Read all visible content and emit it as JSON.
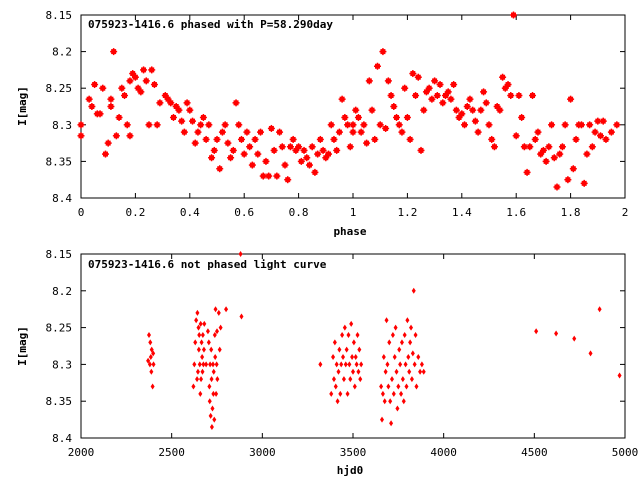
{
  "colors": {
    "marker": "#ff0000",
    "axis": "#000000",
    "background": "#ffffff"
  },
  "chart_data": [
    {
      "type": "scatter",
      "marker": "star",
      "title": "075923-1416.6 phased with P=58.290day",
      "xlabel": "phase",
      "ylabel": "I[mag]",
      "xlim": [
        0,
        2
      ],
      "ylim": [
        8.15,
        8.4
      ],
      "y_inverted": true,
      "grid": false,
      "xticks": [
        0,
        0.2,
        0.4,
        0.6,
        0.8,
        1,
        1.2,
        1.4,
        1.6,
        1.8,
        2
      ],
      "xtick_labels": [
        "0",
        "0.2",
        "0.4",
        "0.6",
        "0.8",
        "1",
        "1.2",
        "1.4",
        "1.6",
        "1.8",
        "2"
      ],
      "yticks": [
        8.15,
        8.2,
        8.25,
        8.3,
        8.35,
        8.4
      ],
      "ytick_labels": [
        "8.15",
        "8.2",
        "8.25",
        "8.3",
        "8.35",
        "8.4"
      ],
      "points": [
        [
          0.0,
          8.3
        ],
        [
          0.0,
          8.315
        ],
        [
          0.03,
          8.265
        ],
        [
          0.04,
          8.275
        ],
        [
          0.05,
          8.245
        ],
        [
          0.06,
          8.285
        ],
        [
          0.07,
          8.285
        ],
        [
          0.08,
          8.25
        ],
        [
          0.09,
          8.34
        ],
        [
          0.1,
          8.325
        ],
        [
          0.11,
          8.265
        ],
        [
          0.11,
          8.275
        ],
        [
          0.12,
          8.2
        ],
        [
          0.13,
          8.315
        ],
        [
          0.14,
          8.29
        ],
        [
          0.15,
          8.25
        ],
        [
          0.16,
          8.26
        ],
        [
          0.17,
          8.3
        ],
        [
          0.18,
          8.24
        ],
        [
          0.18,
          8.315
        ],
        [
          0.19,
          8.23
        ],
        [
          0.2,
          8.235
        ],
        [
          0.21,
          8.25
        ],
        [
          0.22,
          8.255
        ],
        [
          0.23,
          8.225
        ],
        [
          0.24,
          8.24
        ],
        [
          0.25,
          8.3
        ],
        [
          0.26,
          8.225
        ],
        [
          0.27,
          8.245
        ],
        [
          0.28,
          8.3
        ],
        [
          0.29,
          8.27
        ],
        [
          0.31,
          8.26
        ],
        [
          0.32,
          8.265
        ],
        [
          0.33,
          8.27
        ],
        [
          0.34,
          8.29
        ],
        [
          0.35,
          8.275
        ],
        [
          0.36,
          8.28
        ],
        [
          0.37,
          8.295
        ],
        [
          0.38,
          8.31
        ],
        [
          0.39,
          8.27
        ],
        [
          0.4,
          8.28
        ],
        [
          0.41,
          8.295
        ],
        [
          0.42,
          8.325
        ],
        [
          0.43,
          8.31
        ],
        [
          0.44,
          8.3
        ],
        [
          0.45,
          8.29
        ],
        [
          0.46,
          8.32
        ],
        [
          0.47,
          8.3
        ],
        [
          0.48,
          8.345
        ],
        [
          0.49,
          8.335
        ],
        [
          0.5,
          8.32
        ],
        [
          0.51,
          8.36
        ],
        [
          0.52,
          8.31
        ],
        [
          0.53,
          8.3
        ],
        [
          0.54,
          8.325
        ],
        [
          0.55,
          8.345
        ],
        [
          0.56,
          8.335
        ],
        [
          0.57,
          8.27
        ],
        [
          0.58,
          8.3
        ],
        [
          0.59,
          8.32
        ],
        [
          0.6,
          8.34
        ],
        [
          0.61,
          8.31
        ],
        [
          0.62,
          8.33
        ],
        [
          0.63,
          8.355
        ],
        [
          0.64,
          8.32
        ],
        [
          0.65,
          8.34
        ],
        [
          0.66,
          8.31
        ],
        [
          0.67,
          8.37
        ],
        [
          0.68,
          8.35
        ],
        [
          0.69,
          8.37
        ],
        [
          0.7,
          8.305
        ],
        [
          0.71,
          8.335
        ],
        [
          0.72,
          8.37
        ],
        [
          0.73,
          8.31
        ],
        [
          0.74,
          8.33
        ],
        [
          0.75,
          8.355
        ],
        [
          0.76,
          8.375
        ],
        [
          0.77,
          8.33
        ],
        [
          0.78,
          8.32
        ],
        [
          0.79,
          8.335
        ],
        [
          0.8,
          8.33
        ],
        [
          0.81,
          8.35
        ],
        [
          0.82,
          8.335
        ],
        [
          0.83,
          8.345
        ],
        [
          0.84,
          8.355
        ],
        [
          0.85,
          8.33
        ],
        [
          0.86,
          8.365
        ],
        [
          0.87,
          8.34
        ],
        [
          0.88,
          8.32
        ],
        [
          0.89,
          8.335
        ],
        [
          0.9,
          8.345
        ],
        [
          0.91,
          8.34
        ],
        [
          0.92,
          8.3
        ],
        [
          0.93,
          8.32
        ],
        [
          0.94,
          8.335
        ],
        [
          0.95,
          8.31
        ],
        [
          0.96,
          8.265
        ],
        [
          0.97,
          8.29
        ],
        [
          0.98,
          8.3
        ],
        [
          0.99,
          8.33
        ],
        [
          1.0,
          8.3
        ],
        [
          1.0,
          8.31
        ],
        [
          1.01,
          8.28
        ],
        [
          1.02,
          8.29
        ],
        [
          1.03,
          8.31
        ],
        [
          1.04,
          8.3
        ],
        [
          1.05,
          8.325
        ],
        [
          1.06,
          8.24
        ],
        [
          1.07,
          8.28
        ],
        [
          1.08,
          8.32
        ],
        [
          1.09,
          8.22
        ],
        [
          1.1,
          8.3
        ],
        [
          1.11,
          8.2
        ],
        [
          1.12,
          8.305
        ],
        [
          1.13,
          8.24
        ],
        [
          1.14,
          8.26
        ],
        [
          1.15,
          8.275
        ],
        [
          1.16,
          8.29
        ],
        [
          1.17,
          8.3
        ],
        [
          1.18,
          8.31
        ],
        [
          1.19,
          8.25
        ],
        [
          1.2,
          8.29
        ],
        [
          1.21,
          8.32
        ],
        [
          1.22,
          8.23
        ],
        [
          1.23,
          8.26
        ],
        [
          1.24,
          8.235
        ],
        [
          1.25,
          8.335
        ],
        [
          1.26,
          8.28
        ],
        [
          1.27,
          8.255
        ],
        [
          1.28,
          8.25
        ],
        [
          1.29,
          8.265
        ],
        [
          1.3,
          8.24
        ],
        [
          1.31,
          8.26
        ],
        [
          1.32,
          8.245
        ],
        [
          1.33,
          8.27
        ],
        [
          1.34,
          8.26
        ],
        [
          1.35,
          8.255
        ],
        [
          1.36,
          8.265
        ],
        [
          1.37,
          8.245
        ],
        [
          1.38,
          8.28
        ],
        [
          1.39,
          8.29
        ],
        [
          1.4,
          8.285
        ],
        [
          1.41,
          8.3
        ],
        [
          1.42,
          8.275
        ],
        [
          1.43,
          8.265
        ],
        [
          1.44,
          8.28
        ],
        [
          1.45,
          8.295
        ],
        [
          1.46,
          8.31
        ],
        [
          1.47,
          8.28
        ],
        [
          1.48,
          8.255
        ],
        [
          1.49,
          8.27
        ],
        [
          1.5,
          8.3
        ],
        [
          1.51,
          8.32
        ],
        [
          1.52,
          8.33
        ],
        [
          1.53,
          8.275
        ],
        [
          1.54,
          8.28
        ],
        [
          1.55,
          8.235
        ],
        [
          1.56,
          8.25
        ],
        [
          1.57,
          8.245
        ],
        [
          1.58,
          8.26
        ],
        [
          1.59,
          8.15
        ],
        [
          1.6,
          8.315
        ],
        [
          1.61,
          8.26
        ],
        [
          1.62,
          8.29
        ],
        [
          1.63,
          8.33
        ],
        [
          1.64,
          8.365
        ],
        [
          1.65,
          8.33
        ],
        [
          1.66,
          8.26
        ],
        [
          1.67,
          8.32
        ],
        [
          1.68,
          8.31
        ],
        [
          1.69,
          8.34
        ],
        [
          1.7,
          8.335
        ],
        [
          1.71,
          8.35
        ],
        [
          1.72,
          8.33
        ],
        [
          1.73,
          8.3
        ],
        [
          1.74,
          8.345
        ],
        [
          1.75,
          8.385
        ],
        [
          1.76,
          8.34
        ],
        [
          1.77,
          8.33
        ],
        [
          1.78,
          8.3
        ],
        [
          1.79,
          8.375
        ],
        [
          1.8,
          8.265
        ],
        [
          1.81,
          8.36
        ],
        [
          1.82,
          8.32
        ],
        [
          1.83,
          8.3
        ],
        [
          1.84,
          8.3
        ],
        [
          1.85,
          8.38
        ],
        [
          1.86,
          8.34
        ],
        [
          1.87,
          8.3
        ],
        [
          1.88,
          8.33
        ],
        [
          1.89,
          8.31
        ],
        [
          1.9,
          8.295
        ],
        [
          1.91,
          8.315
        ],
        [
          1.92,
          8.295
        ],
        [
          1.93,
          8.32
        ],
        [
          1.95,
          8.31
        ],
        [
          1.97,
          8.3
        ]
      ]
    },
    {
      "type": "scatter",
      "marker": "diamond",
      "title": "075923-1416.6 not phased light curve",
      "xlabel": "hjd0",
      "ylabel": "I[mag]",
      "xlim": [
        2000,
        5000
      ],
      "ylim": [
        8.15,
        8.4
      ],
      "y_inverted": true,
      "grid": false,
      "xticks": [
        2000,
        2500,
        3000,
        3500,
        4000,
        4500,
        5000
      ],
      "xtick_labels": [
        "2000",
        "2500",
        "3000",
        "3500",
        "4000",
        "4500",
        "5000"
      ],
      "yticks": [
        8.15,
        8.2,
        8.25,
        8.3,
        8.35,
        8.4
      ],
      "ytick_labels": [
        "8.15",
        "8.2",
        "8.25",
        "8.3",
        "8.35",
        "8.4"
      ],
      "points": [
        [
          2370,
          8.295
        ],
        [
          2375,
          8.26
        ],
        [
          2380,
          8.3
        ],
        [
          2382,
          8.27
        ],
        [
          2385,
          8.29
        ],
        [
          2388,
          8.31
        ],
        [
          2390,
          8.28
        ],
        [
          2395,
          8.33
        ],
        [
          2398,
          8.285
        ],
        [
          2400,
          8.3
        ],
        [
          2620,
          8.33
        ],
        [
          2625,
          8.3
        ],
        [
          2630,
          8.27
        ],
        [
          2635,
          8.24
        ],
        [
          2640,
          8.32
        ],
        [
          2642,
          8.23
        ],
        [
          2645,
          8.31
        ],
        [
          2648,
          8.25
        ],
        [
          2650,
          8.28
        ],
        [
          2652,
          8.26
        ],
        [
          2655,
          8.3
        ],
        [
          2658,
          8.34
        ],
        [
          2660,
          8.245
        ],
        [
          2662,
          8.32
        ],
        [
          2665,
          8.27
        ],
        [
          2668,
          8.29
        ],
        [
          2670,
          8.31
        ],
        [
          2672,
          8.26
        ],
        [
          2675,
          8.3
        ],
        [
          2678,
          8.28
        ],
        [
          2680,
          8.245
        ],
        [
          2690,
          8.3
        ],
        [
          2700,
          8.255
        ],
        [
          2705,
          8.27
        ],
        [
          2708,
          8.33
        ],
        [
          2710,
          8.35
        ],
        [
          2712,
          8.3
        ],
        [
          2715,
          8.37
        ],
        [
          2718,
          8.28
        ],
        [
          2720,
          8.32
        ],
        [
          2722,
          8.385
        ],
        [
          2725,
          8.36
        ],
        [
          2728,
          8.3
        ],
        [
          2730,
          8.34
        ],
        [
          2732,
          8.31
        ],
        [
          2735,
          8.375
        ],
        [
          2738,
          8.26
        ],
        [
          2740,
          8.29
        ],
        [
          2742,
          8.225
        ],
        [
          2745,
          8.34
        ],
        [
          2748,
          8.3
        ],
        [
          2750,
          8.255
        ],
        [
          2752,
          8.32
        ],
        [
          2760,
          8.23
        ],
        [
          2765,
          8.28
        ],
        [
          2770,
          8.25
        ],
        [
          2800,
          8.225
        ],
        [
          2880,
          8.15
        ],
        [
          2885,
          8.235
        ],
        [
          3320,
          8.3
        ],
        [
          3380,
          8.34
        ],
        [
          3390,
          8.29
        ],
        [
          3395,
          8.32
        ],
        [
          3400,
          8.27
        ],
        [
          3405,
          8.33
        ],
        [
          3410,
          8.3
        ],
        [
          3415,
          8.35
        ],
        [
          3420,
          8.31
        ],
        [
          3425,
          8.28
        ],
        [
          3430,
          8.34
        ],
        [
          3435,
          8.3
        ],
        [
          3440,
          8.26
        ],
        [
          3445,
          8.29
        ],
        [
          3450,
          8.32
        ],
        [
          3455,
          8.25
        ],
        [
          3460,
          8.3
        ],
        [
          3465,
          8.28
        ],
        [
          3470,
          8.34
        ],
        [
          3475,
          8.26
        ],
        [
          3480,
          8.3
        ],
        [
          3485,
          8.32
        ],
        [
          3490,
          8.245
        ],
        [
          3495,
          8.29
        ],
        [
          3500,
          8.31
        ],
        [
          3505,
          8.27
        ],
        [
          3510,
          8.33
        ],
        [
          3515,
          8.29
        ],
        [
          3520,
          8.3
        ],
        [
          3525,
          8.26
        ],
        [
          3530,
          8.31
        ],
        [
          3535,
          8.28
        ],
        [
          3540,
          8.32
        ],
        [
          3545,
          8.3
        ],
        [
          3655,
          8.33
        ],
        [
          3660,
          8.375
        ],
        [
          3665,
          8.34
        ],
        [
          3670,
          8.29
        ],
        [
          3675,
          8.35
        ],
        [
          3680,
          8.31
        ],
        [
          3685,
          8.24
        ],
        [
          3690,
          8.3
        ],
        [
          3695,
          8.33
        ],
        [
          3700,
          8.27
        ],
        [
          3705,
          8.35
        ],
        [
          3710,
          8.38
        ],
        [
          3715,
          8.32
        ],
        [
          3720,
          8.26
        ],
        [
          3725,
          8.34
        ],
        [
          3730,
          8.29
        ],
        [
          3735,
          8.25
        ],
        [
          3740,
          8.31
        ],
        [
          3745,
          8.36
        ],
        [
          3750,
          8.33
        ],
        [
          3755,
          8.28
        ],
        [
          3760,
          8.3
        ],
        [
          3765,
          8.34
        ],
        [
          3770,
          8.27
        ],
        [
          3775,
          8.32
        ],
        [
          3780,
          8.35
        ],
        [
          3785,
          8.26
        ],
        [
          3790,
          8.3
        ],
        [
          3795,
          8.33
        ],
        [
          3800,
          8.24
        ],
        [
          3805,
          8.29
        ],
        [
          3810,
          8.31
        ],
        [
          3815,
          8.27
        ],
        [
          3820,
          8.25
        ],
        [
          3825,
          8.32
        ],
        [
          3830,
          8.285
        ],
        [
          3835,
          8.2
        ],
        [
          3840,
          8.3
        ],
        [
          3845,
          8.26
        ],
        [
          3850,
          8.33
        ],
        [
          3860,
          8.29
        ],
        [
          3870,
          8.31
        ],
        [
          3880,
          8.3
        ],
        [
          3890,
          8.31
        ],
        [
          4510,
          8.255
        ],
        [
          4620,
          8.258
        ],
        [
          4720,
          8.265
        ],
        [
          4810,
          8.285
        ],
        [
          4860,
          8.225
        ],
        [
          4970,
          8.315
        ]
      ]
    }
  ]
}
